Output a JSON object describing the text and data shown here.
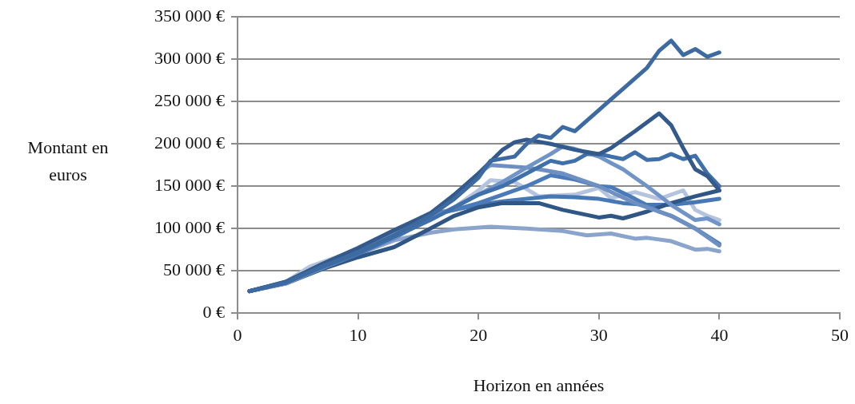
{
  "chart_data": {
    "type": "line",
    "xlabel": "Horizon en années",
    "ylabel": "Montant en euros",
    "xlim": [
      0,
      50
    ],
    "xticks": [
      0,
      10,
      20,
      30,
      40,
      50
    ],
    "ylim": [
      0,
      350000
    ],
    "yticks": [
      {
        "value": 0,
        "label": "0 €"
      },
      {
        "value": 50000,
        "label": "50 000 €"
      },
      {
        "value": 100000,
        "label": "100 000 €"
      },
      {
        "value": 150000,
        "label": "150 000 €"
      },
      {
        "value": 200000,
        "label": "200 000 €"
      },
      {
        "value": 250000,
        "label": "250 000 €"
      },
      {
        "value": 300000,
        "label": "300 000 €"
      },
      {
        "value": 350000,
        "label": "350 000 €"
      }
    ],
    "grid": "y",
    "legend": false,
    "marker": "none",
    "line_style": "solid",
    "series": [
      {
        "color": "#3d6aa0",
        "x": [
          1,
          4,
          7,
          10,
          13,
          16,
          18,
          20,
          21,
          23,
          24,
          25,
          26,
          27,
          28,
          30,
          32,
          34,
          35,
          36,
          37,
          38,
          39,
          40
        ],
        "values": [
          26000,
          36000,
          55000,
          72000,
          92000,
          115000,
          135000,
          160000,
          180000,
          185000,
          200000,
          210000,
          207000,
          220000,
          215000,
          240000,
          265000,
          290000,
          310000,
          322000,
          305000,
          312000,
          303000,
          308000
        ]
      },
      {
        "color": "#335a8a",
        "x": [
          1,
          4,
          7,
          10,
          13,
          16,
          18,
          20,
          22,
          23,
          24,
          26,
          28,
          30,
          31,
          33,
          35,
          36,
          37,
          38,
          39,
          40
        ],
        "values": [
          26000,
          37000,
          58000,
          77000,
          98000,
          118000,
          140000,
          165000,
          193000,
          202000,
          205000,
          200000,
          193000,
          188000,
          195000,
          215000,
          236000,
          222000,
          195000,
          170000,
          162000,
          145000
        ]
      },
      {
        "color": "#4070aa",
        "x": [
          1,
          4,
          7,
          10,
          13,
          16,
          18,
          20,
          22,
          24,
          26,
          27,
          28,
          29,
          30,
          31,
          32,
          33,
          34,
          35,
          36,
          37,
          38,
          39,
          40
        ],
        "values": [
          26000,
          36000,
          54000,
          70000,
          90000,
          110000,
          125000,
          140000,
          150000,
          165000,
          180000,
          177000,
          180000,
          188000,
          188000,
          185000,
          182000,
          190000,
          181000,
          182000,
          188000,
          182000,
          186000,
          165000,
          150000
        ]
      },
      {
        "color": "#7094c8",
        "x": [
          1,
          4,
          7,
          10,
          13,
          15,
          18,
          20,
          22,
          24,
          26,
          27,
          28,
          30,
          32,
          34,
          36,
          38,
          39,
          40
        ],
        "values": [
          26000,
          35000,
          53000,
          70000,
          88000,
          105000,
          125000,
          140000,
          155000,
          172000,
          188000,
          197000,
          194000,
          185000,
          170000,
          150000,
          128000,
          110000,
          112000,
          105000
        ]
      },
      {
        "color": "#6d8fc2",
        "x": [
          1,
          4,
          7,
          10,
          13,
          16,
          18,
          20,
          21,
          24,
          25,
          27,
          30,
          33,
          36,
          38,
          40
        ],
        "values": [
          26000,
          37000,
          56000,
          74000,
          94000,
          115000,
          140000,
          165000,
          175000,
          172000,
          170000,
          165000,
          150000,
          130000,
          115000,
          100000,
          80000
        ]
      },
      {
        "color": "#4a7ab8",
        "x": [
          1,
          4,
          7,
          10,
          13,
          16,
          18,
          20,
          22,
          24,
          26,
          28,
          30,
          31,
          33,
          35,
          36,
          38,
          40
        ],
        "values": [
          26000,
          36000,
          55000,
          73000,
          95000,
          118000,
          122000,
          130000,
          140000,
          150000,
          163000,
          158000,
          150000,
          149000,
          135000,
          120000,
          115000,
          100000,
          82000
        ]
      },
      {
        "color": "#2f5685",
        "x": [
          1,
          4,
          7,
          10,
          13,
          16,
          18,
          20,
          22,
          25,
          27,
          30,
          31,
          32,
          34,
          36,
          38,
          40
        ],
        "values": [
          26000,
          35000,
          52000,
          66000,
          78000,
          100000,
          115000,
          125000,
          130000,
          130000,
          122000,
          113000,
          115000,
          112000,
          120000,
          130000,
          138000,
          145000
        ]
      },
      {
        "color": "#4878b4",
        "x": [
          1,
          4,
          7,
          10,
          13,
          16,
          18,
          20,
          22,
          24,
          26,
          28,
          30,
          32,
          34,
          36,
          38,
          40
        ],
        "values": [
          26000,
          36000,
          54000,
          71000,
          93000,
          115000,
          122000,
          128000,
          132000,
          135000,
          138000,
          137000,
          135000,
          130000,
          128000,
          128000,
          131000,
          135000
        ]
      },
      {
        "color": "#b4c3de",
        "x": [
          1,
          4,
          6,
          10,
          13,
          16,
          18,
          20,
          21,
          23,
          25,
          28,
          30,
          31,
          33,
          35,
          37,
          38,
          39,
          40
        ],
        "values": [
          26000,
          37000,
          55000,
          75000,
          null,
          110000,
          125000,
          145000,
          157000,
          155000,
          138000,
          140000,
          148000,
          136000,
          143000,
          135000,
          145000,
          122000,
          115000,
          110000
        ]
      },
      {
        "color": "#8aa4cc",
        "x": [
          1,
          4,
          7,
          10,
          13,
          16,
          18,
          21,
          24,
          27,
          29,
          31,
          33,
          34,
          36,
          37,
          38,
          39,
          40
        ],
        "values": [
          26000,
          36000,
          53000,
          70000,
          86000,
          95000,
          99000,
          102000,
          100000,
          97000,
          92000,
          94000,
          88000,
          89000,
          85000,
          80000,
          75000,
          76000,
          73000
        ]
      }
    ]
  }
}
